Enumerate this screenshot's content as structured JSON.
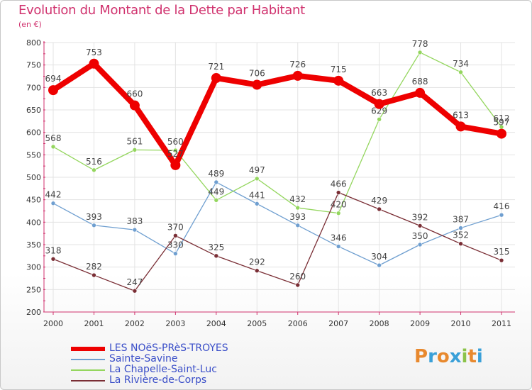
{
  "title": "Evolution du Montant de la Dette par Habitant",
  "subtitle": "(en €)",
  "brand": {
    "letters": [
      "P",
      "r",
      "o",
      "x",
      "i",
      "t",
      "i"
    ],
    "colors": [
      "#e8892e",
      "#3aa0d8",
      "#e8892e",
      "#3aa0d8",
      "#8bc34a",
      "#e8892e",
      "#3aa0d8"
    ]
  },
  "chart_data": {
    "type": "line",
    "x": [
      "2000",
      "2001",
      "2002",
      "2003",
      "2004",
      "2005",
      "2006",
      "2007",
      "2008",
      "2009",
      "2010",
      "2011"
    ],
    "ylim": [
      200,
      800
    ],
    "yticks": [
      200,
      250,
      300,
      350,
      400,
      450,
      500,
      550,
      600,
      650,
      700,
      750,
      800
    ],
    "grid": true,
    "legend_position": "bottom-left",
    "series": [
      {
        "name": "LES NOëS-PRèS-TROYES",
        "color": "#ee0000",
        "width": 8,
        "marker": 7,
        "values": [
          694,
          753,
          660,
          527,
          721,
          706,
          726,
          715,
          663,
          688,
          613,
          597
        ]
      },
      {
        "name": "Sainte-Savine",
        "color": "#6f9fd0",
        "width": 1.3,
        "marker": 3,
        "values": [
          442,
          393,
          383,
          330,
          489,
          441,
          393,
          346,
          304,
          350,
          387,
          416
        ]
      },
      {
        "name": "La Chapelle-Saint-Luc",
        "color": "#94d65e",
        "width": 1.3,
        "marker": 3,
        "values": [
          568,
          516,
          561,
          560,
          449,
          497,
          432,
          420,
          629,
          778,
          734,
          612
        ]
      },
      {
        "name": "La Rivière-de-Corps",
        "color": "#7a2e35",
        "width": 1.3,
        "marker": 3,
        "values": [
          318,
          282,
          247,
          370,
          325,
          292,
          260,
          466,
          429,
          392,
          352,
          315
        ]
      }
    ]
  },
  "legend": [
    {
      "label": "LES NOëS-PRèS-TROYES",
      "color": "#ee0000"
    },
    {
      "label": "Sainte-Savine",
      "color": "#6f9fd0"
    },
    {
      "label": "La Chapelle-Saint-Luc",
      "color": "#94d65e"
    },
    {
      "label": "La Rivière-de-Corps",
      "color": "#7a2e35"
    }
  ]
}
